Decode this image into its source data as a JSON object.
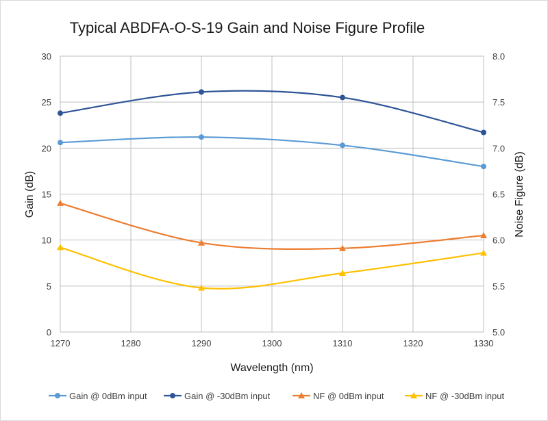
{
  "chart_data": {
    "type": "line",
    "title": "Typical ABDFA-O-S-19 Gain and Noise Figure Profile",
    "xlabel": "Wavelength (nm)",
    "ylabel": "Gain (dB)",
    "y2label": "Noise Figure (dB)",
    "xlim": [
      1270,
      1330
    ],
    "ylim": [
      0,
      30
    ],
    "y2lim": [
      5.0,
      8.0
    ],
    "x_ticks": [
      "1270",
      "1280",
      "1290",
      "1300",
      "1310",
      "1320",
      "1330"
    ],
    "y_ticks": [
      "0",
      "5",
      "10",
      "15",
      "20",
      "25",
      "30"
    ],
    "y2_ticks": [
      "5.0",
      "5.5",
      "6.0",
      "6.5",
      "7.0",
      "7.5",
      "8.0"
    ],
    "grid": true,
    "legend_position": "bottom",
    "x": [
      1270,
      1290,
      1310,
      1330
    ],
    "series": [
      {
        "name": "Gain @ 0dBm input",
        "axis": "left",
        "marker": "circle",
        "color": "#5b9bd5",
        "values": [
          20.6,
          21.2,
          20.3,
          18.0
        ]
      },
      {
        "name": "Gain @ -30dBm input",
        "axis": "left",
        "marker": "circle",
        "color": "#2f5597",
        "values": [
          23.8,
          26.1,
          25.5,
          21.7
        ]
      },
      {
        "name": "NF @ 0dBm input",
        "axis": "right",
        "marker": "triangle",
        "color": "#ed7d31",
        "values": [
          6.4,
          5.97,
          5.91,
          6.05
        ]
      },
      {
        "name": "NF @ -30dBm input",
        "axis": "right",
        "marker": "triangle",
        "color": "#ffc000",
        "values": [
          5.92,
          5.48,
          5.64,
          5.86
        ]
      }
    ]
  }
}
